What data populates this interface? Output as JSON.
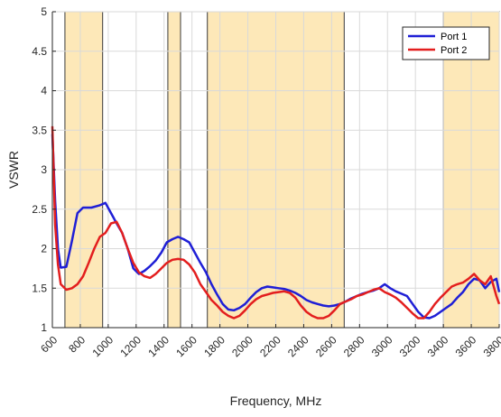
{
  "chart_data": {
    "type": "line",
    "xlabel": "Frequency, MHz",
    "ylabel": "VSWR",
    "xlim": [
      600,
      3800
    ],
    "ylim": [
      1,
      5
    ],
    "xticks": [
      600,
      800,
      1000,
      1200,
      1400,
      1600,
      1800,
      2000,
      2200,
      2400,
      2600,
      2800,
      3000,
      3200,
      3400,
      3600,
      3800
    ],
    "yticks": [
      1,
      1.5,
      2,
      2.5,
      3,
      3.5,
      4,
      4.5,
      5
    ],
    "xtick_labels": [
      "600",
      "800",
      "1000",
      "1200",
      "1400",
      "1600",
      "1800",
      "2000",
      "2200",
      "2400",
      "2600",
      "2800",
      "3000",
      "3200",
      "3400",
      "3600",
      "3800"
    ],
    "ytick_labels": [
      "1",
      "1.5",
      "2",
      "2.5",
      "3",
      "3.5",
      "4",
      "4.5",
      "5"
    ],
    "grid": true,
    "legend_position": "top-right",
    "bands": [
      [
        690,
        960
      ],
      [
        1427,
        1518
      ],
      [
        1710,
        2690
      ],
      [
        3400,
        3800
      ]
    ],
    "band_color": "#fde8b8",
    "band_edge_color": "#3a3a3a",
    "series": [
      {
        "name": "Port 1",
        "color": "#1f1fd6",
        "x": [
          600,
          620,
          640,
          660,
          700,
          740,
          780,
          820,
          880,
          940,
          980,
          1020,
          1060,
          1100,
          1140,
          1180,
          1220,
          1260,
          1300,
          1340,
          1380,
          1420,
          1460,
          1500,
          1540,
          1580,
          1620,
          1660,
          1700,
          1740,
          1780,
          1820,
          1860,
          1900,
          1940,
          1980,
          2020,
          2060,
          2100,
          2140,
          2180,
          2220,
          2260,
          2300,
          2340,
          2380,
          2420,
          2460,
          2500,
          2540,
          2580,
          2620,
          2660,
          2700,
          2740,
          2780,
          2820,
          2860,
          2900,
          2940,
          2980,
          3020,
          3060,
          3100,
          3140,
          3180,
          3220,
          3260,
          3300,
          3340,
          3380,
          3420,
          3460,
          3500,
          3540,
          3580,
          3620,
          3660,
          3700,
          3740,
          3780,
          3800
        ],
        "y": [
          3.45,
          2.6,
          2.0,
          1.76,
          1.77,
          2.1,
          2.45,
          2.52,
          2.52,
          2.55,
          2.58,
          2.45,
          2.32,
          2.2,
          2.0,
          1.75,
          1.68,
          1.72,
          1.78,
          1.85,
          1.95,
          2.08,
          2.12,
          2.15,
          2.12,
          2.08,
          1.95,
          1.82,
          1.7,
          1.55,
          1.42,
          1.3,
          1.23,
          1.22,
          1.25,
          1.3,
          1.38,
          1.45,
          1.5,
          1.52,
          1.51,
          1.5,
          1.49,
          1.47,
          1.44,
          1.4,
          1.35,
          1.32,
          1.3,
          1.28,
          1.27,
          1.28,
          1.3,
          1.33,
          1.37,
          1.4,
          1.43,
          1.45,
          1.47,
          1.5,
          1.55,
          1.5,
          1.46,
          1.43,
          1.4,
          1.3,
          1.2,
          1.13,
          1.12,
          1.15,
          1.2,
          1.25,
          1.3,
          1.38,
          1.45,
          1.55,
          1.62,
          1.6,
          1.5,
          1.58,
          1.62,
          1.45
        ]
      },
      {
        "name": "Port 2",
        "color": "#e31e1e",
        "x": [
          600,
          620,
          640,
          660,
          700,
          740,
          780,
          820,
          860,
          900,
          940,
          980,
          1020,
          1060,
          1100,
          1140,
          1180,
          1220,
          1260,
          1300,
          1340,
          1380,
          1420,
          1460,
          1500,
          1540,
          1580,
          1620,
          1660,
          1700,
          1740,
          1780,
          1820,
          1860,
          1900,
          1940,
          1980,
          2020,
          2060,
          2100,
          2140,
          2180,
          2220,
          2260,
          2300,
          2340,
          2380,
          2420,
          2460,
          2500,
          2540,
          2580,
          2620,
          2660,
          2700,
          2740,
          2780,
          2820,
          2860,
          2900,
          2940,
          2980,
          3020,
          3060,
          3100,
          3140,
          3180,
          3220,
          3260,
          3300,
          3340,
          3380,
          3420,
          3460,
          3500,
          3540,
          3580,
          3620,
          3660,
          3700,
          3740,
          3780,
          3800
        ],
        "y": [
          3.55,
          2.3,
          1.8,
          1.55,
          1.48,
          1.5,
          1.55,
          1.65,
          1.82,
          2.0,
          2.15,
          2.2,
          2.32,
          2.34,
          2.2,
          2.0,
          1.82,
          1.7,
          1.65,
          1.63,
          1.68,
          1.75,
          1.82,
          1.86,
          1.87,
          1.86,
          1.8,
          1.7,
          1.55,
          1.45,
          1.35,
          1.28,
          1.2,
          1.15,
          1.12,
          1.15,
          1.22,
          1.3,
          1.36,
          1.4,
          1.42,
          1.44,
          1.45,
          1.46,
          1.44,
          1.38,
          1.28,
          1.2,
          1.15,
          1.12,
          1.12,
          1.15,
          1.22,
          1.3,
          1.33,
          1.36,
          1.4,
          1.42,
          1.45,
          1.48,
          1.5,
          1.45,
          1.42,
          1.38,
          1.32,
          1.25,
          1.18,
          1.12,
          1.12,
          1.2,
          1.3,
          1.38,
          1.45,
          1.52,
          1.55,
          1.57,
          1.62,
          1.68,
          1.6,
          1.55,
          1.65,
          1.4,
          1.3
        ]
      }
    ]
  }
}
